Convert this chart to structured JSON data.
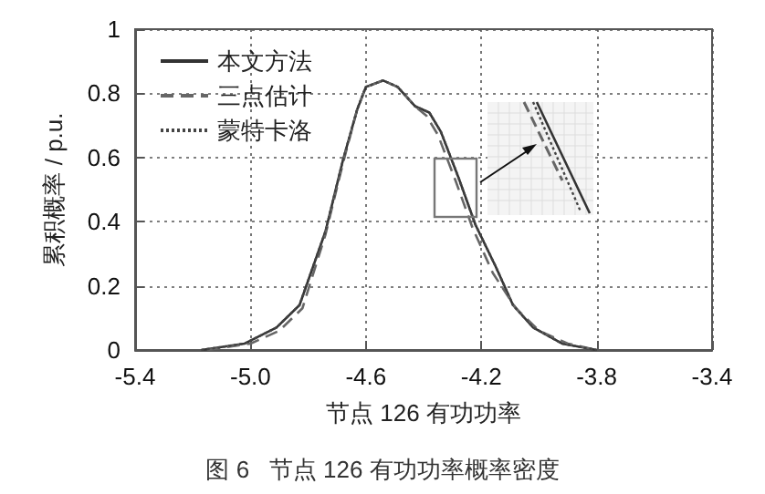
{
  "chart_data": {
    "type": "line",
    "title": "图 6   节点 126 有功功率概率密度",
    "xlabel": "节点 126 有功功率",
    "ylabel": "累积概率 / p.u.",
    "xlim": [
      -5.4,
      -3.4
    ],
    "xticks": [
      -5.4,
      {
        "value": -5,
        "label": "-5.0"
      },
      -4.6,
      -4.2,
      -3.8,
      -3.4
    ],
    "ylim": [
      0,
      1
    ],
    "yticks": [
      0,
      0.2,
      0.4,
      0.6,
      0.8,
      1
    ],
    "grid": true,
    "legend": "top left",
    "marker": "none",
    "series": [
      {
        "name": "本文方法",
        "color": "#333333",
        "line_style": "solid",
        "x": [
          -5.17,
          -5.02,
          -4.91,
          -4.83,
          -4.74,
          -4.68,
          -4.63,
          -4.6,
          -4.54,
          -4.49,
          -4.43,
          -4.38,
          -4.34,
          -4.28,
          -4.22,
          -4.15,
          -4.09,
          -4.02,
          -3.92,
          -3.8
        ],
        "values": [
          0,
          0.02,
          0.07,
          0.14,
          0.37,
          0.59,
          0.75,
          0.82,
          0.84,
          0.82,
          0.76,
          0.74,
          0.68,
          0.54,
          0.39,
          0.26,
          0.14,
          0.07,
          0.02,
          0
        ]
      },
      {
        "name": "三点估计",
        "color": "#666666",
        "line_style": "dashed",
        "x": [
          -5.15,
          -5.0,
          -4.9,
          -4.82,
          -4.74,
          -4.68,
          -4.63,
          -4.6,
          -4.54,
          -4.49,
          -4.43,
          -4.39,
          -4.35,
          -4.29,
          -4.23,
          -4.16,
          -4.08,
          -4.0,
          -3.9,
          -3.8
        ],
        "values": [
          0,
          0.02,
          0.06,
          0.13,
          0.36,
          0.58,
          0.75,
          0.82,
          0.84,
          0.82,
          0.76,
          0.73,
          0.67,
          0.53,
          0.38,
          0.24,
          0.13,
          0.06,
          0.02,
          0
        ]
      },
      {
        "name": "蒙特卡洛",
        "color": "#444444",
        "line_style": "dotted",
        "x": [
          -5.17,
          -5.02,
          -4.91,
          -4.83,
          -4.74,
          -4.68,
          -4.63,
          -4.6,
          -4.54,
          -4.49,
          -4.43,
          -4.38,
          -4.34,
          -4.28,
          -4.22,
          -4.15,
          -4.09,
          -4.02,
          -3.92,
          -3.8
        ],
        "values": [
          0,
          0.02,
          0.07,
          0.14,
          0.37,
          0.59,
          0.75,
          0.82,
          0.84,
          0.82,
          0.76,
          0.74,
          0.68,
          0.54,
          0.39,
          0.26,
          0.14,
          0.07,
          0.02,
          0
        ]
      }
    ]
  }
}
